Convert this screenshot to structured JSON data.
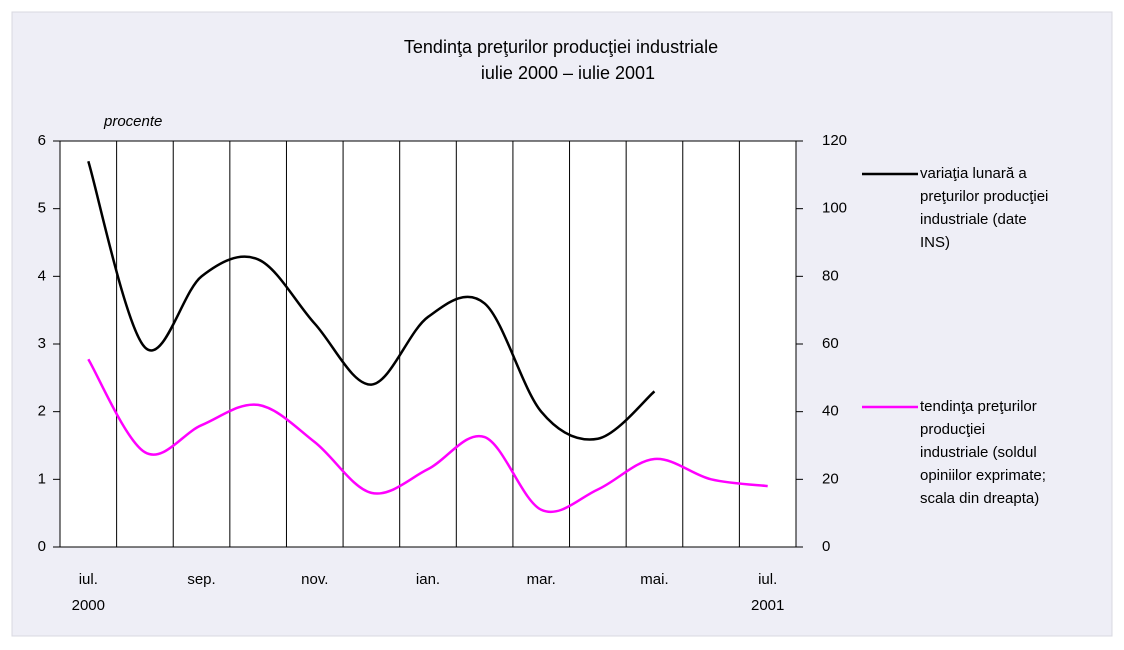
{
  "chart_data": {
    "type": "line",
    "title": "Tendinţa preţurilor producţiei industriale",
    "subtitle": "iulie 2000 – iulie 2001",
    "ylabel": "procente",
    "categories": [
      "iul. 2000",
      null,
      "sep.",
      null,
      "nov.",
      null,
      "ian.",
      null,
      "mar.",
      null,
      "mai.",
      null,
      "iul. 2001"
    ],
    "ylim": [
      0,
      6
    ],
    "yticks": [
      0,
      1,
      2,
      3,
      4,
      5,
      6
    ],
    "y2lim": [
      0,
      120
    ],
    "y2ticks": [
      0,
      20,
      40,
      60,
      80,
      100,
      120
    ],
    "xgrid": true,
    "smooth": true,
    "series": [
      {
        "name": "variaţia lunară a preţurilor producţiei industriale (date INS)",
        "color": "#000000",
        "values": [
          5.7,
          2.95,
          4.0,
          4.25,
          3.3,
          2.4,
          3.4,
          3.6,
          2.0,
          1.6,
          2.3,
          null,
          null
        ]
      },
      {
        "name": "tendinţa preţurilor producţiei industriale (soldul opiniilor exprimate; scala din dreapta)",
        "color": "#ff00ff",
        "axis": "y2",
        "values": [
          55.5,
          28,
          36,
          42,
          31,
          16,
          23,
          32.5,
          11,
          17,
          26,
          20,
          18
        ]
      }
    ]
  }
}
